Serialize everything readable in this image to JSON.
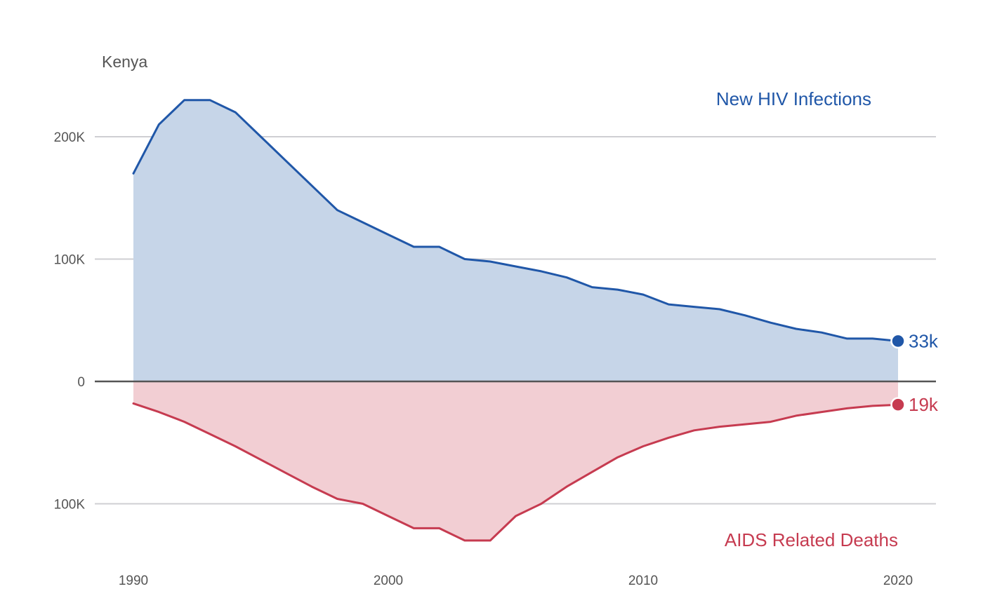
{
  "chart_data": {
    "type": "area",
    "title": "Kenya",
    "x": [
      1990,
      1991,
      1992,
      1993,
      1994,
      1995,
      1996,
      1997,
      1998,
      1999,
      2000,
      2001,
      2002,
      2003,
      2004,
      2005,
      2006,
      2007,
      2008,
      2009,
      2010,
      2011,
      2012,
      2013,
      2014,
      2015,
      2016,
      2017,
      2018,
      2019,
      2020
    ],
    "xlim": [
      1990,
      2020
    ],
    "x_ticks": [
      1990,
      2000,
      2010,
      2020
    ],
    "ylim": [
      -140000,
      240000
    ],
    "y_ticks": [
      {
        "value": 200000,
        "label": "200K"
      },
      {
        "value": 100000,
        "label": "100K"
      },
      {
        "value": 0,
        "label": "0"
      },
      {
        "value": -100000,
        "label": "100K"
      }
    ],
    "grid": true,
    "series": [
      {
        "name": "New HIV Infections",
        "direction": "up",
        "color": "#2057a8",
        "fill": "#c6d5e8",
        "values": [
          170000,
          210000,
          230000,
          230000,
          220000,
          200000,
          180000,
          160000,
          140000,
          130000,
          120000,
          110000,
          110000,
          100000,
          98000,
          94000,
          90000,
          85000,
          77000,
          75000,
          71000,
          63000,
          61000,
          59000,
          54000,
          48000,
          43000,
          40000,
          35000,
          35000,
          33000
        ],
        "end_label": "33k"
      },
      {
        "name": "AIDS Related Deaths",
        "direction": "down",
        "color": "#c63b50",
        "fill": "#f2ced3",
        "values": [
          18000,
          25000,
          33000,
          43000,
          53000,
          64000,
          75000,
          86000,
          96000,
          100000,
          110000,
          120000,
          120000,
          130000,
          130000,
          110000,
          100000,
          86000,
          74000,
          62000,
          53000,
          46000,
          40000,
          37000,
          35000,
          33000,
          28000,
          25000,
          22000,
          20000,
          19000
        ],
        "end_label": "19k"
      }
    ]
  }
}
